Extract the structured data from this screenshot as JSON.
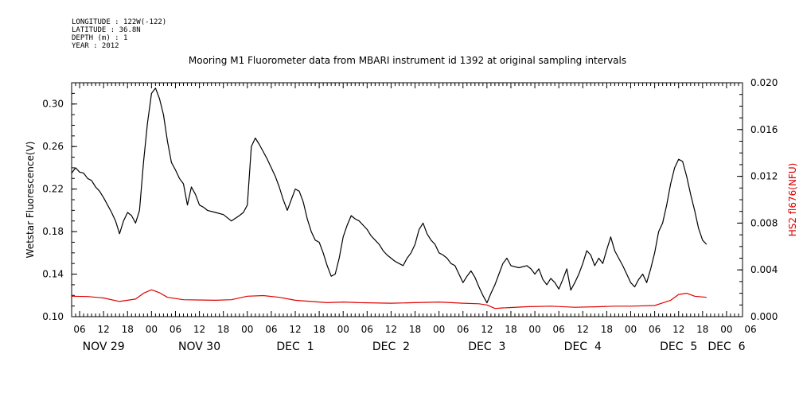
{
  "header": {
    "lines": [
      "LONGITUDE : 122W(-122)",
      "LATITUDE : 36.8N",
      "DEPTH (m) : 1",
      "YEAR : 2012"
    ]
  },
  "chart_data": {
    "type": "line",
    "title": "Mooring M1 Fluorometer data from MBARI instrument id 1392 at original sampling intervals",
    "x_unit": "hours since 2012-11-29 00:00",
    "xlim": [
      4,
      172
    ],
    "hour_tick_labels": [
      "06",
      "12",
      "18",
      "00",
      "06",
      "12",
      "18",
      "00",
      "06",
      "12",
      "18",
      "00",
      "06",
      "12",
      "18",
      "00",
      "06",
      "12",
      "18",
      "00",
      "06",
      "12",
      "18",
      "00",
      "06",
      "12",
      "18",
      "00",
      "06"
    ],
    "day_labels": [
      {
        "label": "NOV 29",
        "hour": 12
      },
      {
        "label": "NOV 30",
        "hour": 36
      },
      {
        "label": "DEC  1",
        "hour": 60
      },
      {
        "label": "DEC  2",
        "hour": 84
      },
      {
        "label": "DEC  3",
        "hour": 108
      },
      {
        "label": "DEC  4",
        "hour": 132
      },
      {
        "label": "DEC  5",
        "hour": 156
      },
      {
        "label": "DEC  6",
        "hour": 168
      }
    ],
    "y_left": {
      "label": "Wetstar Fluorescence(V)",
      "ticks": [
        "0.10",
        "0.14",
        "0.18",
        "0.22",
        "0.26",
        "0.30"
      ],
      "ylim": [
        0.1,
        0.32
      ],
      "color": "#000000"
    },
    "y_right": {
      "label": "HS2 fl676(NFU)",
      "ticks": [
        "0.000",
        "0.004",
        "0.008",
        "0.012",
        "0.016",
        "0.020"
      ],
      "ylim": [
        0.0,
        0.02
      ],
      "color": "#e00000"
    },
    "series": [
      {
        "axis": "left",
        "color": "#000000",
        "points": [
          [
            4,
            0.235
          ],
          [
            5,
            0.24
          ],
          [
            6,
            0.236
          ],
          [
            7,
            0.235
          ],
          [
            8,
            0.23
          ],
          [
            9,
            0.228
          ],
          [
            10,
            0.222
          ],
          [
            11,
            0.218
          ],
          [
            12,
            0.212
          ],
          [
            13,
            0.205
          ],
          [
            14,
            0.198
          ],
          [
            15,
            0.19
          ],
          [
            16,
            0.178
          ],
          [
            17,
            0.19
          ],
          [
            18,
            0.198
          ],
          [
            19,
            0.195
          ],
          [
            20,
            0.188
          ],
          [
            21,
            0.2
          ],
          [
            22,
            0.245
          ],
          [
            23,
            0.282
          ],
          [
            24,
            0.31
          ],
          [
            25,
            0.315
          ],
          [
            26,
            0.305
          ],
          [
            27,
            0.29
          ],
          [
            28,
            0.265
          ],
          [
            29,
            0.245
          ],
          [
            30,
            0.238
          ],
          [
            31,
            0.23
          ],
          [
            32,
            0.225
          ],
          [
            33,
            0.205
          ],
          [
            34,
            0.222
          ],
          [
            35,
            0.215
          ],
          [
            36,
            0.205
          ],
          [
            37,
            0.203
          ],
          [
            38,
            0.2
          ],
          [
            40,
            0.198
          ],
          [
            42,
            0.196
          ],
          [
            44,
            0.19
          ],
          [
            46,
            0.195
          ],
          [
            47,
            0.198
          ],
          [
            48,
            0.205
          ],
          [
            49,
            0.26
          ],
          [
            50,
            0.268
          ],
          [
            51,
            0.262
          ],
          [
            52,
            0.255
          ],
          [
            53,
            0.248
          ],
          [
            54,
            0.24
          ],
          [
            55,
            0.232
          ],
          [
            56,
            0.222
          ],
          [
            57,
            0.21
          ],
          [
            58,
            0.2
          ],
          [
            59,
            0.21
          ],
          [
            60,
            0.22
          ],
          [
            61,
            0.218
          ],
          [
            62,
            0.208
          ],
          [
            63,
            0.192
          ],
          [
            64,
            0.18
          ],
          [
            65,
            0.172
          ],
          [
            66,
            0.17
          ],
          [
            67,
            0.16
          ],
          [
            68,
            0.148
          ],
          [
            69,
            0.138
          ],
          [
            70,
            0.14
          ],
          [
            71,
            0.155
          ],
          [
            72,
            0.175
          ],
          [
            73,
            0.186
          ],
          [
            74,
            0.195
          ],
          [
            75,
            0.192
          ],
          [
            76,
            0.19
          ],
          [
            77,
            0.186
          ],
          [
            78,
            0.182
          ],
          [
            79,
            0.176
          ],
          [
            80,
            0.172
          ],
          [
            81,
            0.168
          ],
          [
            82,
            0.162
          ],
          [
            83,
            0.158
          ],
          [
            84,
            0.155
          ],
          [
            85,
            0.152
          ],
          [
            86,
            0.15
          ],
          [
            87,
            0.148
          ],
          [
            88,
            0.155
          ],
          [
            89,
            0.16
          ],
          [
            90,
            0.168
          ],
          [
            91,
            0.182
          ],
          [
            92,
            0.188
          ],
          [
            93,
            0.178
          ],
          [
            94,
            0.172
          ],
          [
            95,
            0.168
          ],
          [
            96,
            0.16
          ],
          [
            97,
            0.158
          ],
          [
            98,
            0.155
          ],
          [
            99,
            0.15
          ],
          [
            100,
            0.148
          ],
          [
            101,
            0.14
          ],
          [
            102,
            0.132
          ],
          [
            103,
            0.138
          ],
          [
            104,
            0.143
          ],
          [
            105,
            0.137
          ],
          [
            106,
            0.128
          ],
          [
            107,
            0.12
          ],
          [
            108,
            0.113
          ],
          [
            109,
            0.122
          ],
          [
            110,
            0.13
          ],
          [
            111,
            0.14
          ],
          [
            112,
            0.15
          ],
          [
            113,
            0.155
          ],
          [
            114,
            0.148
          ],
          [
            116,
            0.146
          ],
          [
            118,
            0.148
          ],
          [
            119,
            0.145
          ],
          [
            120,
            0.14
          ],
          [
            121,
            0.145
          ],
          [
            122,
            0.135
          ],
          [
            123,
            0.13
          ],
          [
            124,
            0.136
          ],
          [
            125,
            0.132
          ],
          [
            126,
            0.126
          ],
          [
            127,
            0.135
          ],
          [
            128,
            0.145
          ],
          [
            129,
            0.125
          ],
          [
            130,
            0.132
          ],
          [
            131,
            0.14
          ],
          [
            132,
            0.15
          ],
          [
            133,
            0.162
          ],
          [
            134,
            0.158
          ],
          [
            135,
            0.148
          ],
          [
            136,
            0.155
          ],
          [
            137,
            0.15
          ],
          [
            138,
            0.163
          ],
          [
            139,
            0.175
          ],
          [
            140,
            0.162
          ],
          [
            141,
            0.155
          ],
          [
            142,
            0.148
          ],
          [
            143,
            0.14
          ],
          [
            144,
            0.132
          ],
          [
            145,
            0.128
          ],
          [
            146,
            0.135
          ],
          [
            147,
            0.14
          ],
          [
            148,
            0.132
          ],
          [
            149,
            0.145
          ],
          [
            150,
            0.16
          ],
          [
            151,
            0.18
          ],
          [
            152,
            0.188
          ],
          [
            153,
            0.205
          ],
          [
            154,
            0.225
          ],
          [
            155,
            0.24
          ],
          [
            156,
            0.248
          ],
          [
            157,
            0.246
          ],
          [
            158,
            0.232
          ],
          [
            159,
            0.215
          ],
          [
            160,
            0.2
          ],
          [
            161,
            0.183
          ],
          [
            162,
            0.172
          ],
          [
            163,
            0.168
          ]
        ]
      },
      {
        "axis": "right",
        "color": "#e00000",
        "points": [
          [
            4,
            0.00175
          ],
          [
            8,
            0.00172
          ],
          [
            12,
            0.0016
          ],
          [
            16,
            0.0013
          ],
          [
            20,
            0.0015
          ],
          [
            22,
            0.002
          ],
          [
            24,
            0.0023
          ],
          [
            26,
            0.00205
          ],
          [
            28,
            0.00165
          ],
          [
            32,
            0.00145
          ],
          [
            40,
            0.0014
          ],
          [
            44,
            0.00145
          ],
          [
            48,
            0.00175
          ],
          [
            52,
            0.0018
          ],
          [
            56,
            0.00165
          ],
          [
            60,
            0.0014
          ],
          [
            64,
            0.0013
          ],
          [
            68,
            0.0012
          ],
          [
            72,
            0.00125
          ],
          [
            76,
            0.0012
          ],
          [
            84,
            0.00115
          ],
          [
            90,
            0.0012
          ],
          [
            96,
            0.00125
          ],
          [
            102,
            0.00115
          ],
          [
            106,
            0.0011
          ],
          [
            108,
            0.001
          ],
          [
            110,
            0.0007
          ],
          [
            112,
            0.00075
          ],
          [
            118,
            0.00085
          ],
          [
            124,
            0.0009
          ],
          [
            130,
            0.0008
          ],
          [
            136,
            0.00085
          ],
          [
            140,
            0.0009
          ],
          [
            144,
            0.0009
          ],
          [
            150,
            0.00095
          ],
          [
            154,
            0.0014
          ],
          [
            156,
            0.0019
          ],
          [
            158,
            0.002
          ],
          [
            160,
            0.00175
          ],
          [
            163,
            0.00165
          ]
        ]
      }
    ]
  }
}
